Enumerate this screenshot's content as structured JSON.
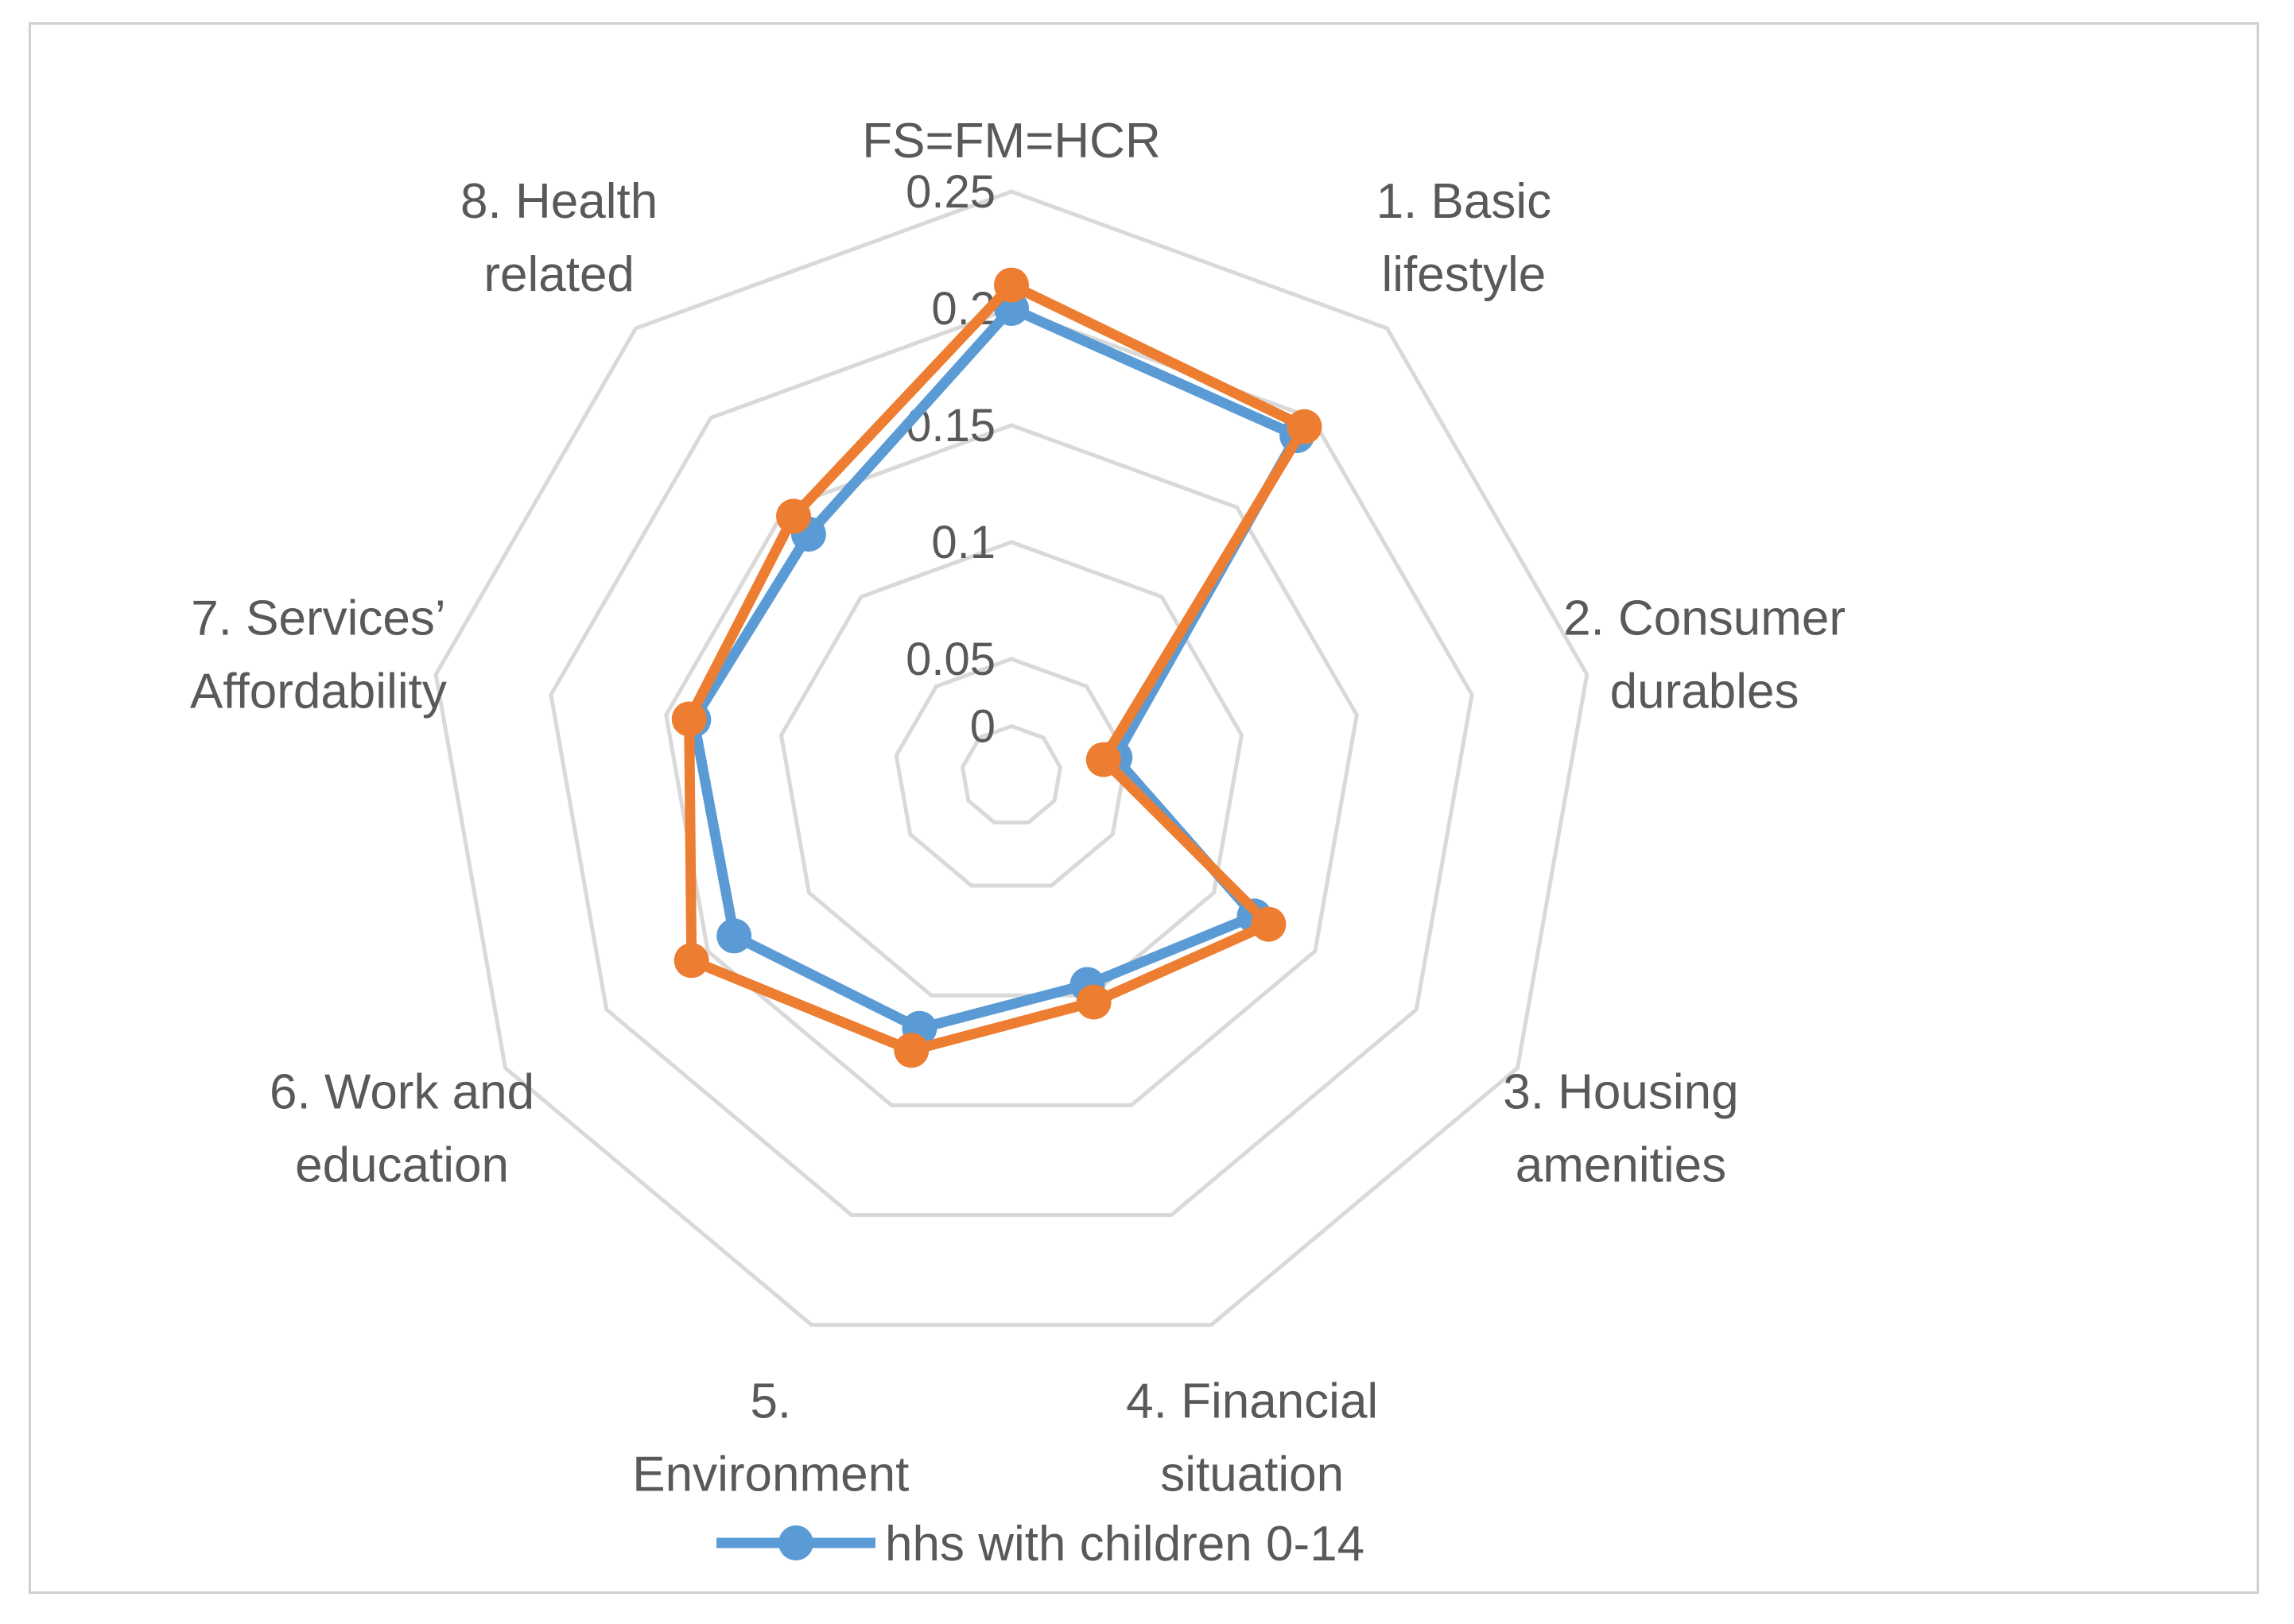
{
  "chart_data": {
    "type": "radar",
    "title": "",
    "axes": [
      {
        "lines": [
          "FS=FM=HCR"
        ]
      },
      {
        "lines": [
          "1. Basic",
          "lifestyle"
        ]
      },
      {
        "lines": [
          "2. Consumer",
          "durables"
        ]
      },
      {
        "lines": [
          "3. Housing",
          "amenities"
        ]
      },
      {
        "lines": [
          "4. Financial",
          "situation"
        ]
      },
      {
        "lines": [
          "5.",
          "Environment"
        ]
      },
      {
        "lines": [
          "6. Work and",
          "education"
        ]
      },
      {
        "lines": [
          "7. Services’",
          "Affordability"
        ]
      },
      {
        "lines": [
          "8. Health",
          "related"
        ]
      }
    ],
    "rlim": [
      0,
      0.25
    ],
    "ticks": [
      "0",
      "0.05",
      "0.1",
      "0.15",
      "0.2",
      "0.25"
    ],
    "tick_values": [
      0,
      0.05,
      0.1,
      0.15,
      0.2,
      0.25
    ],
    "grid": true,
    "legend_position": "bottom",
    "series": [
      {
        "name": "hhs with children 0-14",
        "color": "#5b9bd5",
        "values": [
          0.2,
          0.19,
          0.045,
          0.12,
          0.095,
          0.115,
          0.137,
          0.138,
          0.135
        ],
        "show_in_legend": true
      },
      {
        "name": "",
        "color": "#ed7d31",
        "values": [
          0.21,
          0.195,
          0.04,
          0.127,
          0.103,
          0.125,
          0.158,
          0.14,
          0.145
        ],
        "show_in_legend": false
      }
    ]
  }
}
